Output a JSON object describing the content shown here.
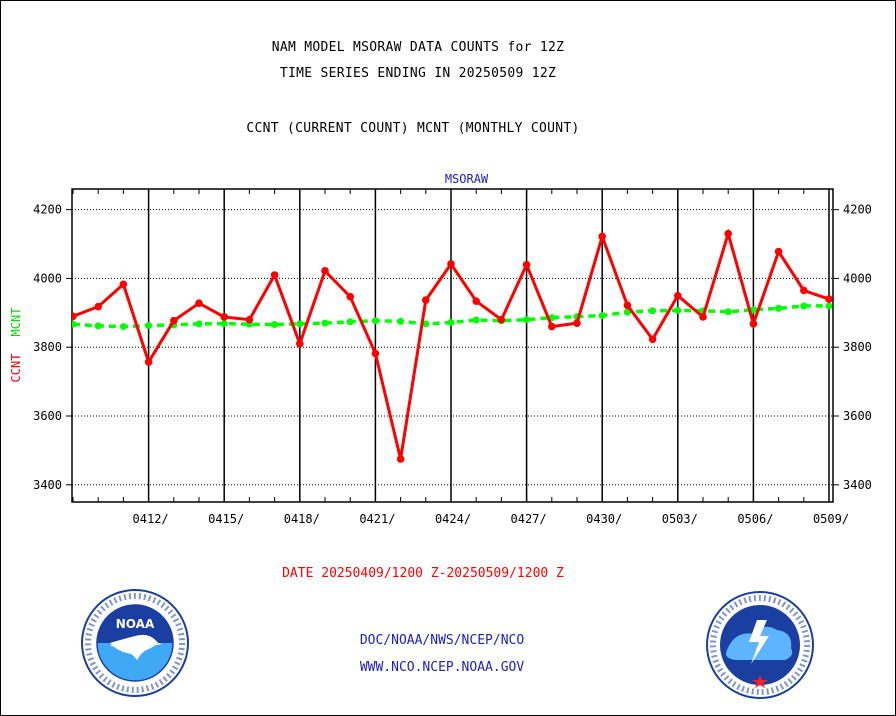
{
  "header": {
    "title_line1": "NAM MODEL MSORAW DATA COUNTS for 12Z",
    "title_line2": "TIME SERIES ENDING IN 20250509 12Z",
    "subtitle": "CCNT (CURRENT COUNT) MCNT (MONTHLY COUNT)"
  },
  "chart_data": {
    "type": "line",
    "title": "MSORAW",
    "ylabel_series1": "CCNT",
    "ylabel_series2": "MCNT",
    "ylim": [
      3350,
      4260
    ],
    "yticks": [
      3400,
      3600,
      3800,
      4000,
      4200
    ],
    "xlim": [
      0,
      30
    ],
    "xticks": [
      {
        "x": 3,
        "label": "0412/"
      },
      {
        "x": 6,
        "label": "0415/"
      },
      {
        "x": 9,
        "label": "0418/"
      },
      {
        "x": 12,
        "label": "0421/"
      },
      {
        "x": 15,
        "label": "0424/"
      },
      {
        "x": 18,
        "label": "0427/"
      },
      {
        "x": 21,
        "label": "0430/"
      },
      {
        "x": 24,
        "label": "0503/"
      },
      {
        "x": 27,
        "label": "0506/"
      },
      {
        "x": 30,
        "label": "0509/"
      }
    ],
    "grid": true,
    "series": [
      {
        "name": "CCNT",
        "color": "#ff0000",
        "x": [
          0,
          1,
          2,
          3,
          4,
          5,
          6,
          7,
          8,
          9,
          10,
          11,
          12,
          13,
          14,
          15,
          16,
          17,
          18,
          19,
          20,
          21,
          22,
          23,
          24,
          25,
          26,
          27,
          28,
          29,
          30
        ],
        "values": [
          3890,
          3918,
          3983,
          3757,
          3877,
          3928,
          3888,
          3880,
          4010,
          3810,
          4022,
          3947,
          3782,
          3475,
          3937,
          4042,
          3934,
          3880,
          4040,
          3860,
          3870,
          4122,
          3922,
          3823,
          3950,
          3888,
          4130,
          3868,
          4078,
          3965,
          3940
        ]
      },
      {
        "name": "MCNT",
        "color": "#00ff00",
        "x": [
          0,
          1,
          2,
          3,
          4,
          5,
          6,
          7,
          8,
          9,
          10,
          11,
          12,
          13,
          14,
          15,
          16,
          17,
          18,
          19,
          20,
          21,
          22,
          23,
          24,
          25,
          26,
          27,
          28,
          29,
          30
        ],
        "values": [
          3867,
          3862,
          3860,
          3863,
          3865,
          3868,
          3869,
          3867,
          3866,
          3868,
          3870,
          3874,
          3877,
          3875,
          3868,
          3872,
          3879,
          3877,
          3880,
          3886,
          3889,
          3892,
          3902,
          3906,
          3907,
          3906,
          3903,
          3909,
          3913,
          3920,
          3920
        ]
      }
    ]
  },
  "date_range": "DATE 20250409/1200 Z-20250509/1200 Z",
  "footer": {
    "line1": "DOC/NOAA/NWS/NCEP/NCO",
    "line2": "WWW.NCO.NCEP.NOAA.GOV"
  },
  "logos": {
    "left_logo": "noaa-logo",
    "right_logo": "nws-logo"
  }
}
